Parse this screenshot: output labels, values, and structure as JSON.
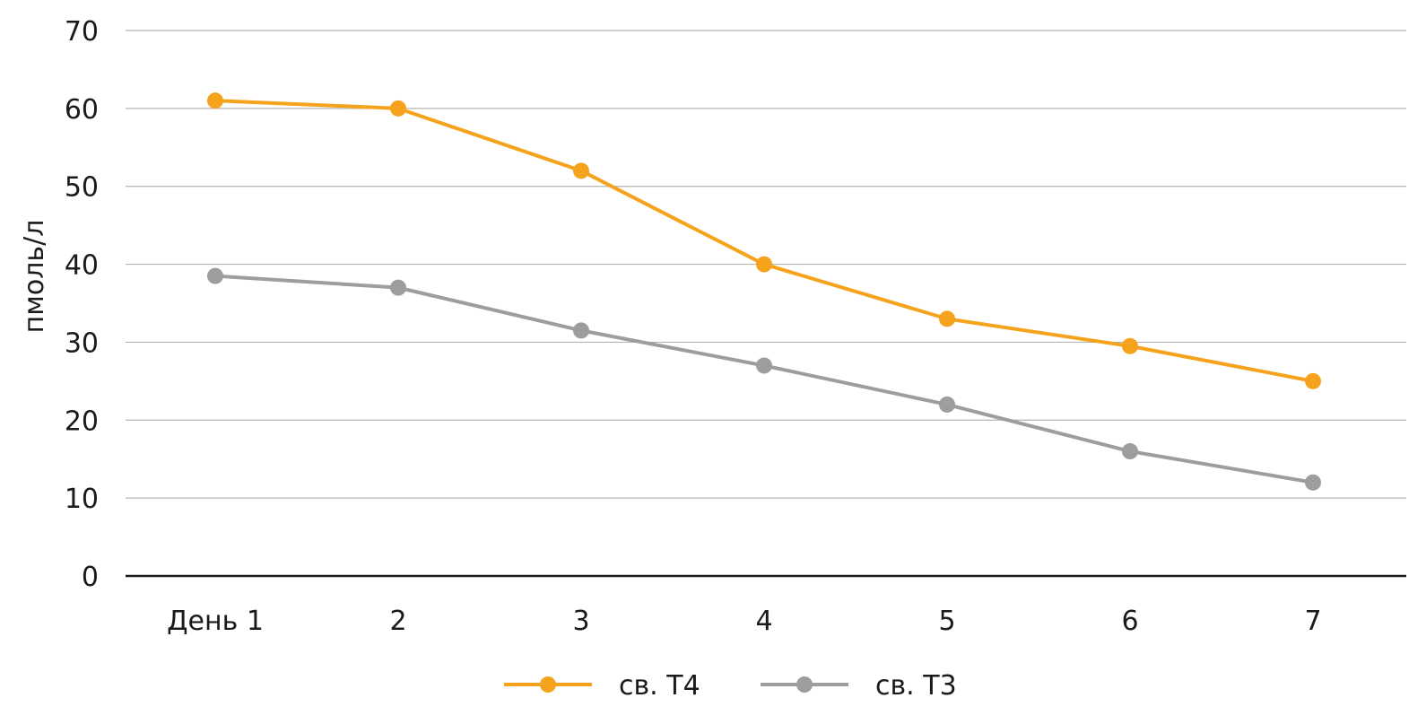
{
  "chart_data": {
    "type": "line",
    "title": "",
    "xlabel": "",
    "ylabel": "пмоль/л",
    "ylim": [
      0,
      70
    ],
    "yticks": [
      0,
      10,
      20,
      30,
      40,
      50,
      60,
      70
    ],
    "grid": true,
    "categories": [
      "День 1",
      "2",
      "3",
      "4",
      "5",
      "6",
      "7"
    ],
    "legend_position": "bottom-center",
    "series": [
      {
        "name": "св. T4",
        "color": "#F5A31C",
        "values": [
          61,
          60,
          52,
          40,
          33,
          29.5,
          25
        ]
      },
      {
        "name": "св. T3",
        "color": "#9D9D9F",
        "values": [
          38.5,
          37,
          31.5,
          27,
          22,
          16,
          12
        ]
      }
    ]
  }
}
